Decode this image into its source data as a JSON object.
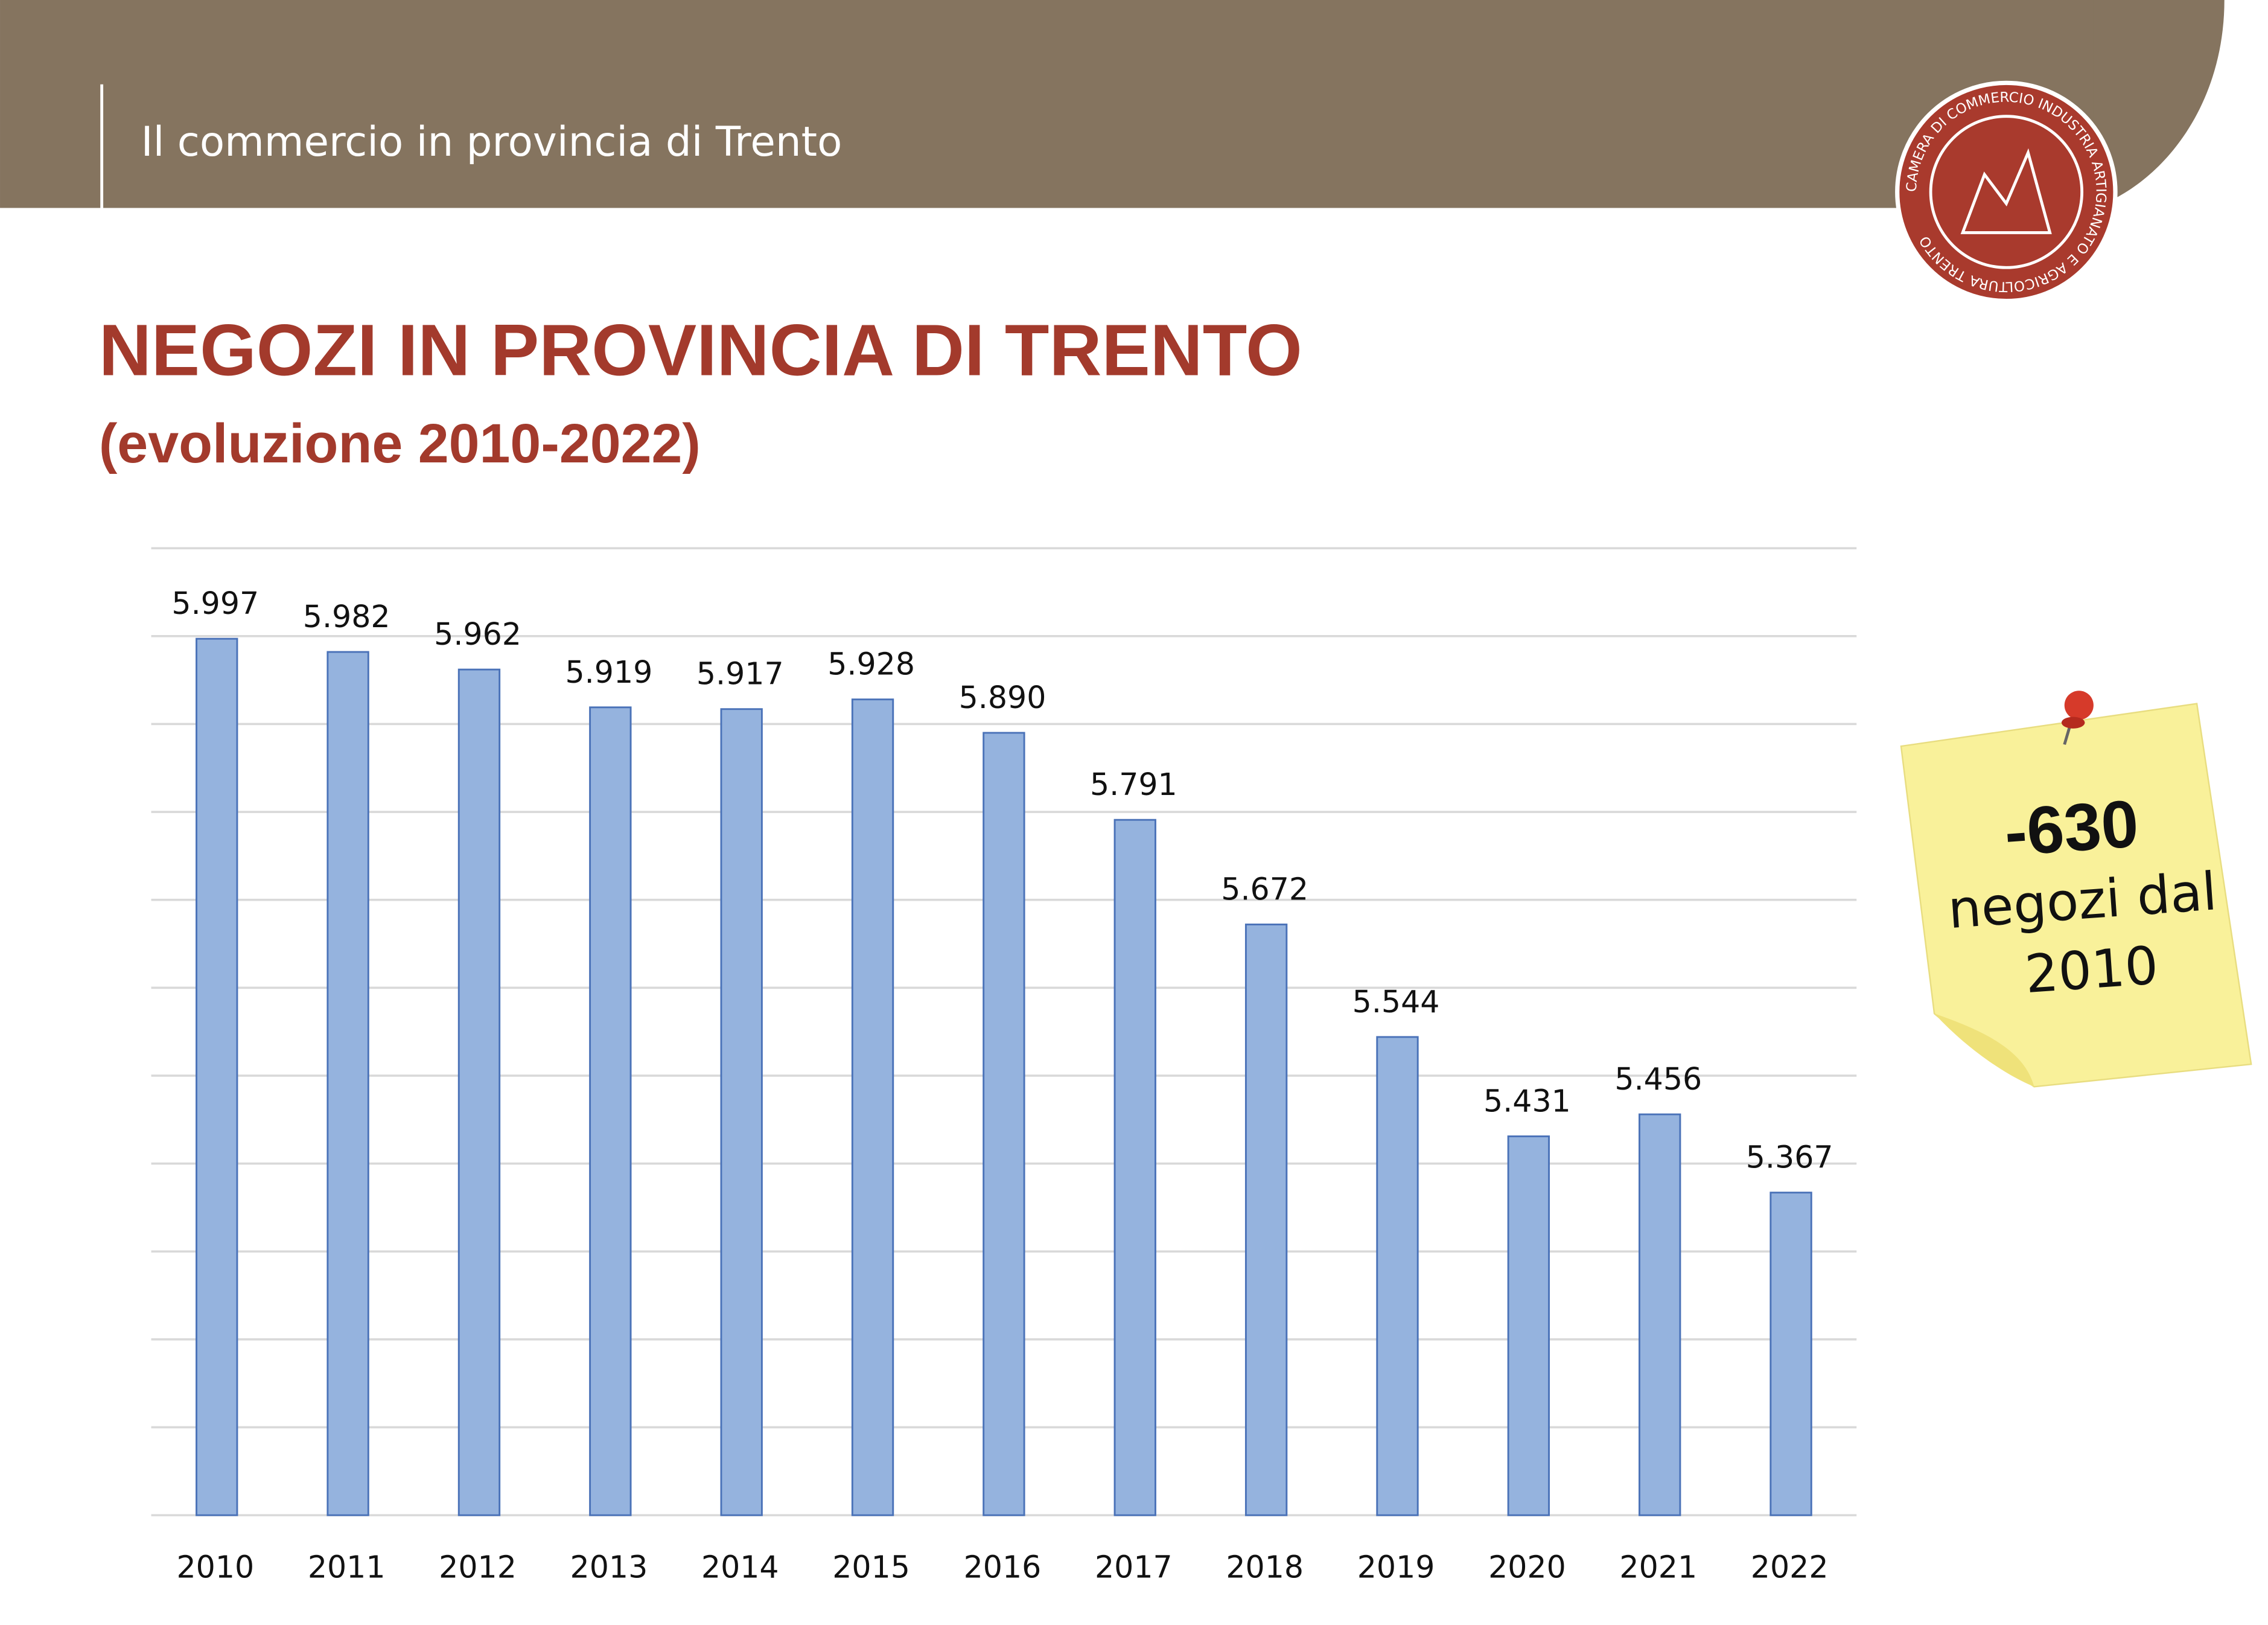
{
  "header": {
    "title": "Il commercio in provincia di Trento"
  },
  "logo": {
    "text": "CAMERA DI COMMERCIO INDUSTRIA ARTIGIANATO E AGRICOLTURA TRENTO"
  },
  "chart_data": {
    "type": "bar",
    "title": "NEGOZI IN PROVINCIA DI TRENTO",
    "subtitle": "(evoluzione 2010-2022)",
    "categories": [
      "2010",
      "2011",
      "2012",
      "2013",
      "2014",
      "2015",
      "2016",
      "2017",
      "2018",
      "2019",
      "2020",
      "2021",
      "2022"
    ],
    "values": [
      5997,
      5982,
      5962,
      5919,
      5917,
      5928,
      5890,
      5791,
      5672,
      5544,
      5431,
      5456,
      5367
    ],
    "value_labels": [
      "5.997",
      "5.982",
      "5.962",
      "5.919",
      "5.917",
      "5.928",
      "5.890",
      "5.791",
      "5.672",
      "5.544",
      "5.431",
      "5.456",
      "5.367"
    ],
    "color": "#95b3de",
    "ylim": [
      5000,
      6100
    ],
    "yticks": [
      5000,
      5100,
      5200,
      5300,
      5400,
      5500,
      5600,
      5700,
      5800,
      5900,
      6000,
      6100
    ],
    "grid": true,
    "annotations": [
      "-630",
      "negozi dal",
      "2010"
    ]
  }
}
